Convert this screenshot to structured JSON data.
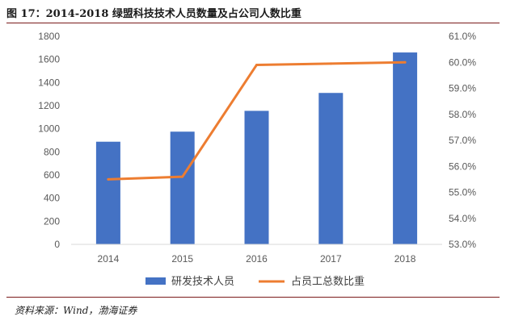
{
  "figure": {
    "title": "图 17：2014-2018 绿盟科技技术人员数量及占公司人数比重",
    "source": "资料来源：Wind，渤海证券"
  },
  "chart_data": {
    "type": "bar",
    "categories": [
      "2014",
      "2015",
      "2016",
      "2017",
      "2018"
    ],
    "series": [
      {
        "name": "研发技术人员",
        "type": "bar",
        "axis": "left",
        "values": [
          888,
          975,
          1155,
          1310,
          1660
        ]
      },
      {
        "name": "占员工总数比重",
        "type": "line",
        "axis": "right",
        "values": [
          55.5,
          55.6,
          59.9,
          59.95,
          60.0
        ]
      }
    ],
    "y_left": {
      "min": 0,
      "max": 1800,
      "ticks": [
        "0",
        "200",
        "400",
        "600",
        "800",
        "1000",
        "1200",
        "1400",
        "1600",
        "1800"
      ]
    },
    "y_right": {
      "min": 53,
      "max": 61,
      "ticks": [
        "53.0%",
        "54.0%",
        "55.0%",
        "56.0%",
        "57.0%",
        "58.0%",
        "59.0%",
        "60.0%",
        "61.0%"
      ]
    },
    "legend_position": "bottom",
    "grid": false,
    "colors": {
      "bar": "#4472C4",
      "line": "#ED7D31",
      "axis": "#D9D9D9",
      "rule": "#7A1A1A"
    }
  }
}
